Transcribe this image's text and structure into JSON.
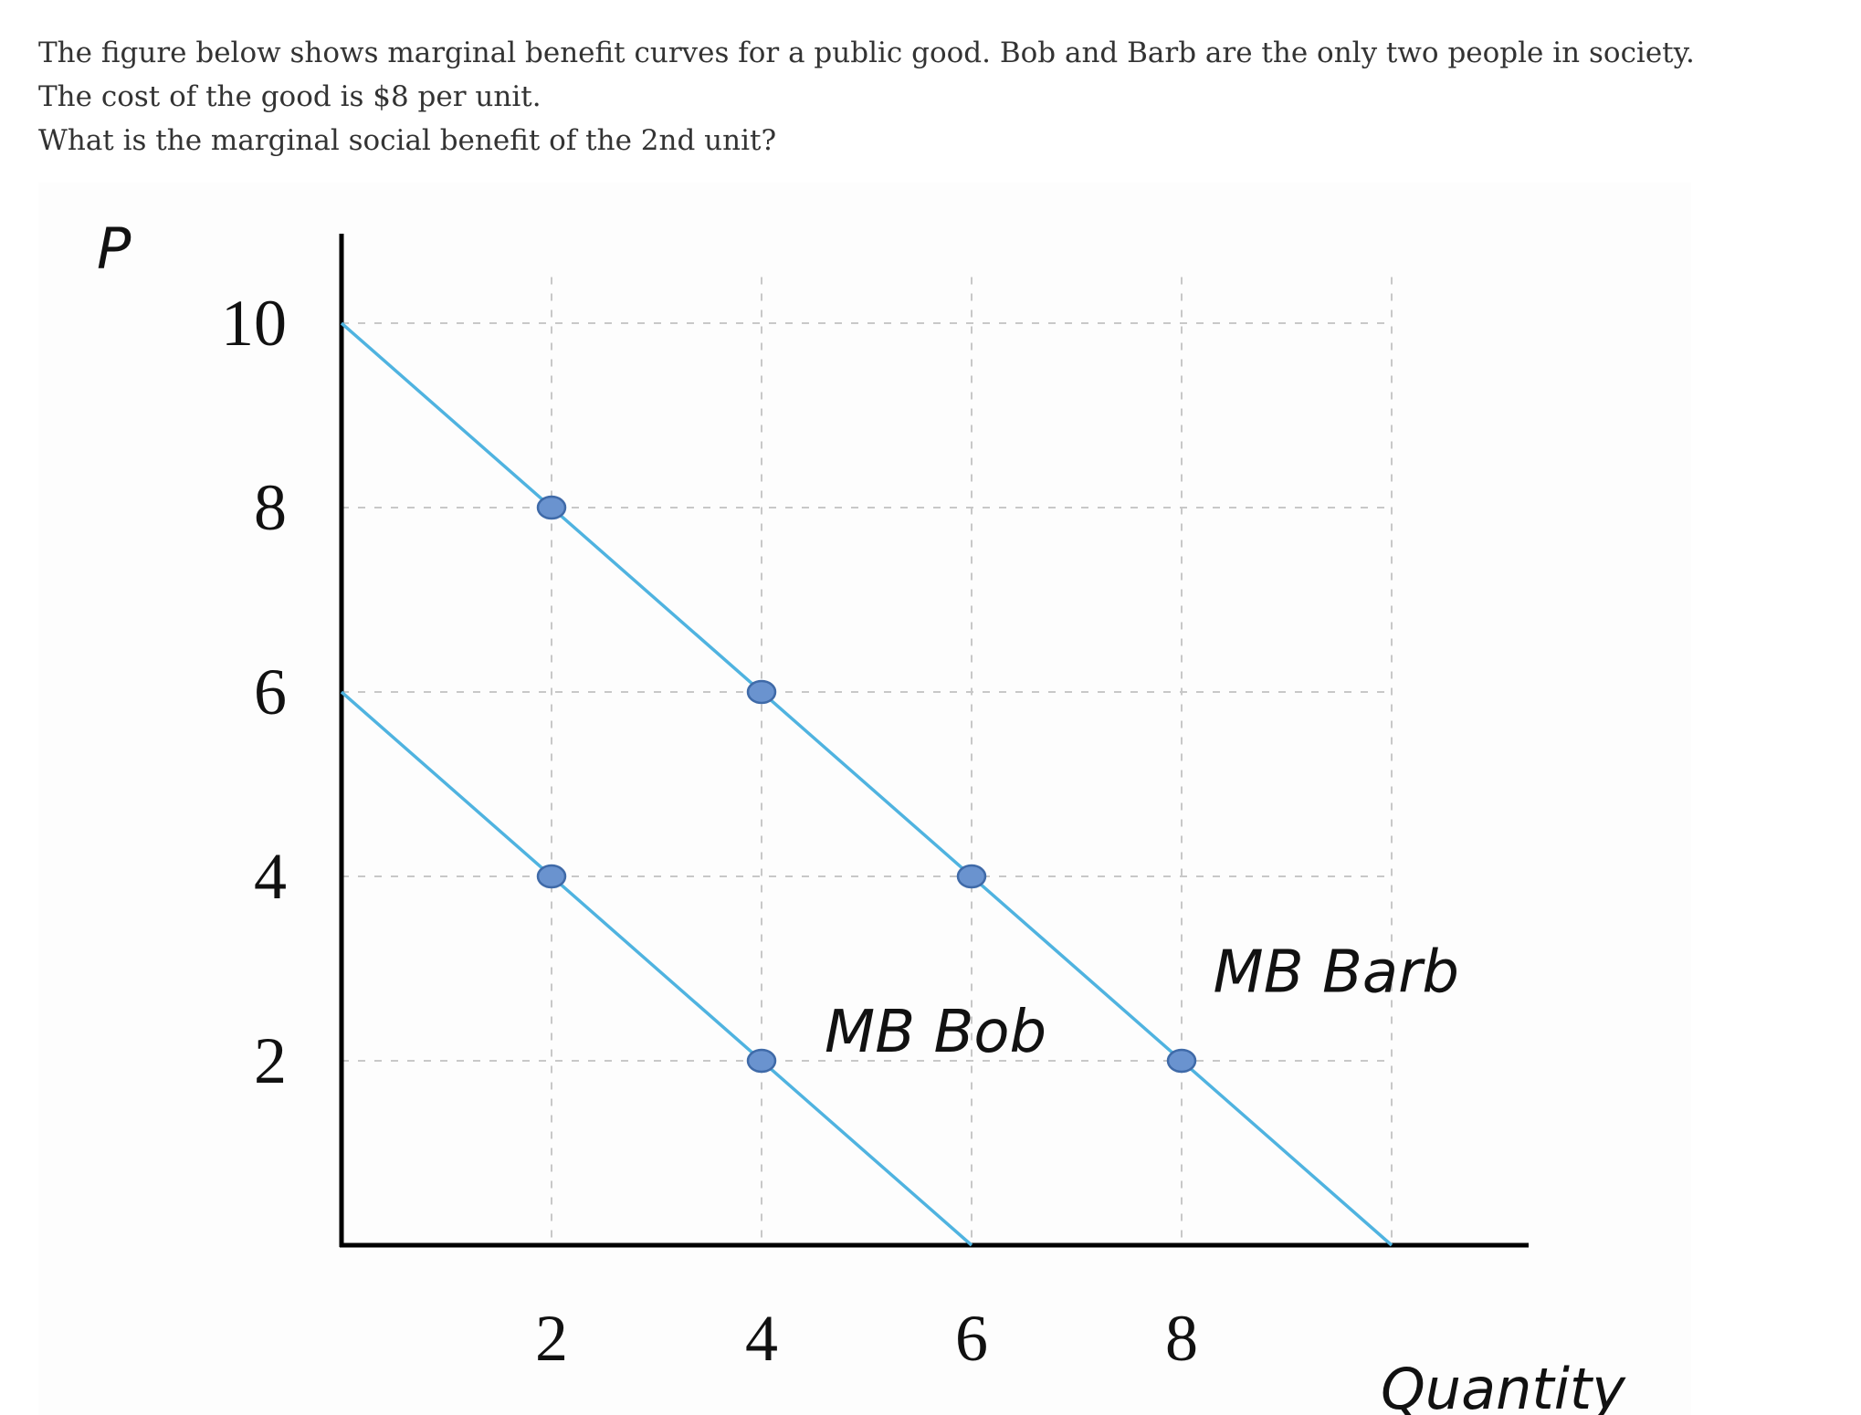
{
  "question": {
    "line1": "The figure below shows marginal benefit curves for a public good. Bob and Barb are the only two people in society. The cost of the good is $8 per unit.",
    "line2": "What is the marginal social benefit of the 2nd unit?"
  },
  "colors": {
    "curve": "#4fb3e0",
    "marker_fill": "#6a93cf",
    "marker_stroke": "#3f6aa8",
    "grid": "#c8c8c8",
    "axis": "#000000"
  },
  "chart_data": {
    "type": "line",
    "title": "",
    "xlabel": "Quantity",
    "ylabel": "P",
    "xlim": [
      0,
      11
    ],
    "ylim": [
      0,
      10.8
    ],
    "x_ticks": [
      "2",
      "4",
      "6",
      "8"
    ],
    "y_ticks": [
      "10",
      "8",
      "6",
      "4",
      "2"
    ],
    "grid_x": [
      2,
      4,
      6,
      8,
      10
    ],
    "grid_y": [
      2,
      4,
      6,
      8,
      10
    ],
    "grid": true,
    "series": [
      {
        "name": "MB Bob",
        "line": [
          [
            0,
            6
          ],
          [
            6,
            0
          ]
        ],
        "markers": [
          [
            2,
            4
          ],
          [
            4,
            2
          ]
        ],
        "label_at": [
          4.6,
          2.1
        ]
      },
      {
        "name": "MB Barb",
        "line": [
          [
            0,
            10
          ],
          [
            10,
            0
          ]
        ],
        "markers": [
          [
            2,
            8
          ],
          [
            4,
            6
          ],
          [
            6,
            4
          ],
          [
            8,
            2
          ]
        ],
        "label_at": [
          8.3,
          2.75
        ]
      }
    ]
  }
}
